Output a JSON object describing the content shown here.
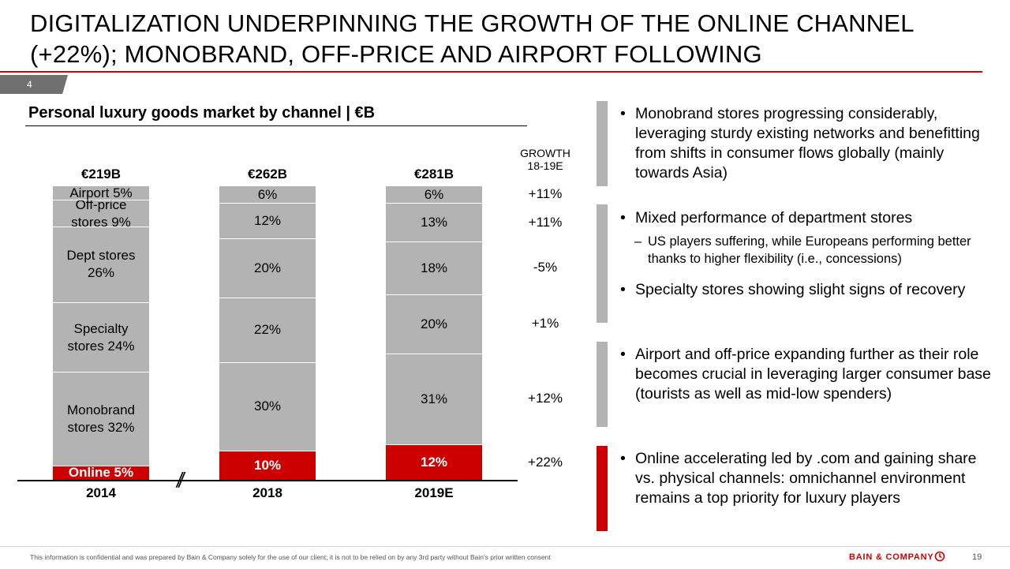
{
  "title": "DIGITALIZATION UNDERPINNING THE GROWTH OF THE ONLINE CHANNEL (+22%); MONOBRAND, OFF-PRICE AND AIRPORT FOLLOWING",
  "page_tab": "4",
  "colors": {
    "accent": "#cc0000",
    "segment_gray": "#b3b3b3",
    "online_red": "#cc0000",
    "side_gray": "#b3b3b3"
  },
  "chart_data": {
    "type": "bar",
    "title": "Personal luxury goods market by channel | €B",
    "stacked": true,
    "percent_stacked": true,
    "categories": [
      "2014",
      "2018",
      "2019E"
    ],
    "totals": [
      "€219B",
      "€262B",
      "€281B"
    ],
    "series_bottom_to_top": [
      {
        "name": "Online",
        "values": [
          5,
          10,
          12
        ],
        "labels": [
          "Online 5%",
          "10%",
          "12%"
        ],
        "color": "#cc0000"
      },
      {
        "name": "Monobrand stores",
        "values": [
          32,
          30,
          31
        ],
        "labels": [
          "Monobrand\nstores 32%",
          "30%",
          "31%"
        ],
        "color": "#b3b3b3"
      },
      {
        "name": "Specialty stores",
        "values": [
          24,
          22,
          20
        ],
        "labels": [
          "Specialty\nstores 24%",
          "22%",
          "20%"
        ],
        "color": "#b3b3b3"
      },
      {
        "name": "Dept stores",
        "values": [
          26,
          20,
          18
        ],
        "labels": [
          "Dept stores\n26%",
          "20%",
          "18%"
        ],
        "color": "#b3b3b3"
      },
      {
        "name": "Off-price stores",
        "values": [
          9,
          12,
          13
        ],
        "labels": [
          "Off-price\nstores 9%",
          "12%",
          "13%"
        ],
        "color": "#b3b3b3"
      },
      {
        "name": "Airport",
        "values": [
          5,
          6,
          6
        ],
        "labels": [
          "Airport 5%",
          "6%",
          "6%"
        ],
        "color": "#b3b3b3"
      }
    ],
    "growth_header": [
      "GROWTH",
      "18-19E"
    ],
    "growth_top_to_bottom": [
      "+11%",
      "+11%",
      "-5%",
      "+1%",
      "+12%",
      "+22%"
    ],
    "axis_break_between": [
      "2014",
      "2018"
    ],
    "legend": "none",
    "grid": false
  },
  "commentary": [
    {
      "text": "Monobrand stores progressing considerably, leveraging sturdy existing networks and benefitting from shifts in consumer flows globally (mainly towards Asia)",
      "bar_color": "#b3b3b3"
    },
    {
      "text": "Mixed performance of department stores",
      "bar_color": "#b3b3b3",
      "sub": "US players suffering, while Europeans performing better thanks to higher flexibility (i.e., concessions)",
      "text2": "Specialty stores showing slight signs of recovery"
    },
    {
      "text": "Airport and off-price expanding further as their role becomes crucial in leveraging larger consumer base (tourists as well as mid-low spenders)",
      "bar_color": "#b3b3b3"
    },
    {
      "text": "Online accelerating led by .com and gaining share vs. physical channels: omnichannel environment remains a top priority for luxury players",
      "bar_color": "#cc0000"
    }
  ],
  "footer": {
    "disclaimer": "This information is confidential and was prepared by Bain & Company solely for the use of our client; it is not to be relied on by any 3rd party without Bain's prior written consent",
    "brand": "BAIN & COMPANY",
    "page_number": "19"
  }
}
